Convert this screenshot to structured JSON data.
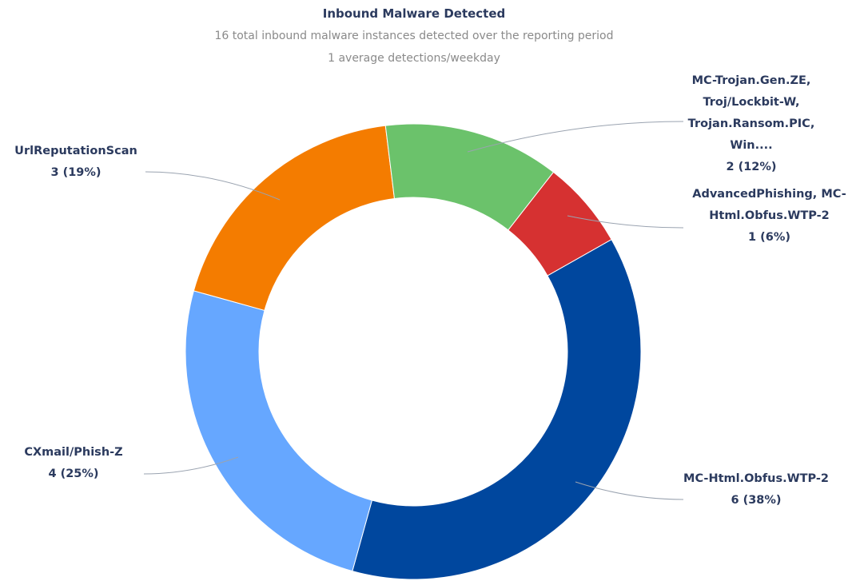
{
  "chart_data": {
    "type": "pie",
    "title": "Inbound Malware Detected",
    "subtitle": [
      "16 total inbound malware instances detected over the reporting period",
      "1 average detections/weekday"
    ],
    "categories": [
      "MC-Html.Obfus.WTP-2",
      "CXmail/Phish-Z",
      "UrlReputationScan",
      "MC-Trojan.Gen.ZE, Troj/Lockbit-W, Trojan.Ransom.PIC, Win....",
      "AdvancedPhishing, MC-Html.Obfus.WTP-2"
    ],
    "values": [
      6,
      4,
      3,
      2,
      1
    ],
    "value_labels": [
      "6 (38%)",
      "4 (25%)",
      "3 (19%)",
      "2 (12%)",
      "1 (6%)"
    ],
    "colors": [
      "#00479e",
      "#66a7ff",
      "#f47c00",
      "#6bc26b",
      "#d63131"
    ]
  }
}
